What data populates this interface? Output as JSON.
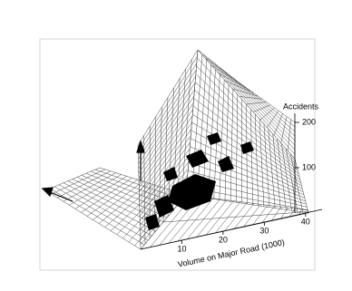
{
  "chart_data": {
    "type": "surface",
    "zlabel": "Accidents",
    "xlabel": "Volume on Major Road (1000)",
    "xlim": [
      0,
      44
    ],
    "xticks": [
      10,
      20,
      30,
      40
    ],
    "zlim": [
      0,
      220
    ],
    "zticks": [
      100,
      200
    ]
  }
}
